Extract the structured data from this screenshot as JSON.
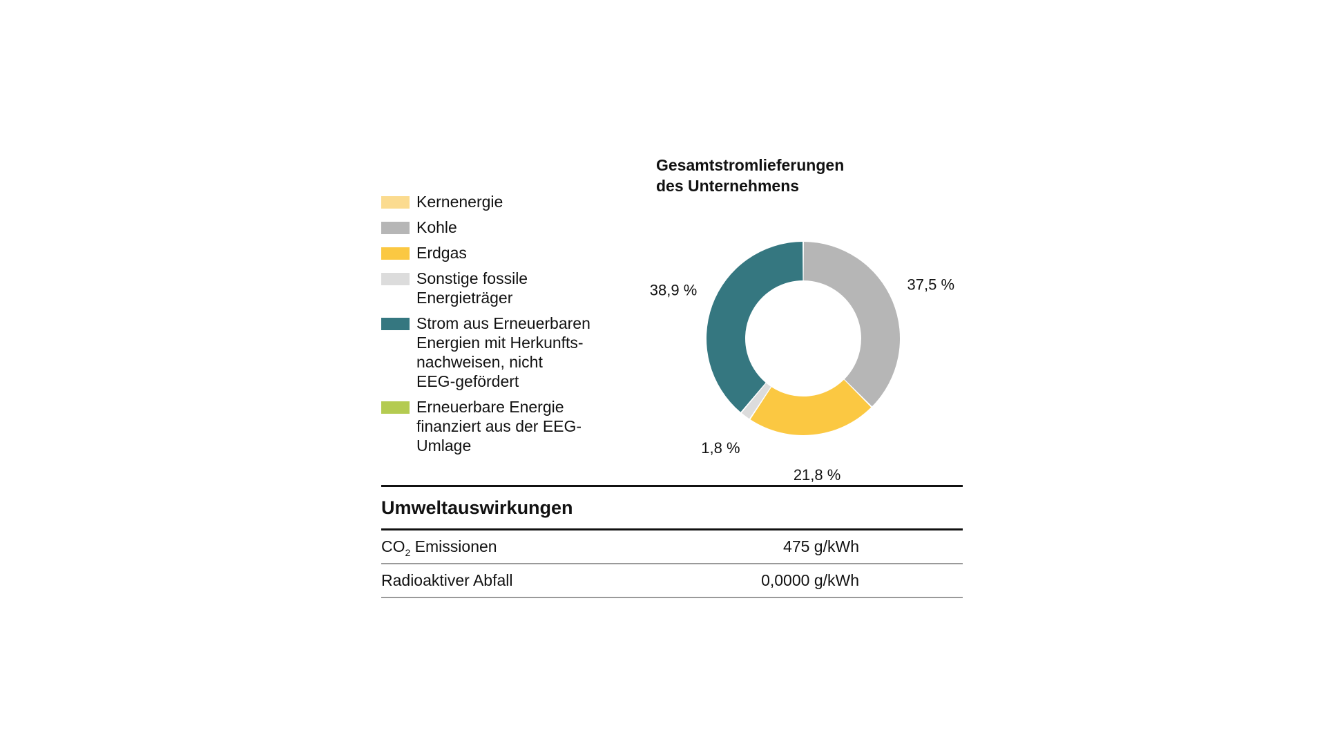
{
  "chart_data": {
    "type": "pie",
    "style": "donut",
    "title": "Gesamtstromlieferungen\ndes Unternehmens",
    "legend": {
      "placement": "left",
      "entries": [
        {
          "label": "Kernenergie",
          "color": "#fbdb8f"
        },
        {
          "label": "Kohle",
          "color": "#b6b6b6"
        },
        {
          "label": "Erdgas",
          "color": "#fbc842"
        },
        {
          "label": "Sonstige fossile\nEnergieträger",
          "color": "#dcdcdc"
        },
        {
          "label": "Strom aus Erneuerbaren\nEnergien mit Herkunfts-\nnachweisen, nicht\nEEG-gefördert",
          "color": "#357780"
        },
        {
          "label": "Erneuerbare Energie\nfinanziert aus der EEG-\nUmlage",
          "color": "#b4cb51"
        }
      ]
    },
    "slices": [
      {
        "label": "Kohle",
        "value": 37.5,
        "value_label": "37,5 %",
        "color": "#b6b6b6"
      },
      {
        "label": "Erdgas",
        "value": 21.8,
        "value_label": "21,8 %",
        "color": "#fbc842"
      },
      {
        "label": "Sonstige fossile Energieträger",
        "value": 1.8,
        "value_label": "1,8 %",
        "color": "#dcdcdc"
      },
      {
        "label": "Strom aus Erneuerbaren Energien mit Herkunftsnachweisen, nicht EEG-gefördert",
        "value": 38.9,
        "value_label": "38,9 %",
        "color": "#357780"
      }
    ]
  },
  "impacts": {
    "heading": "Umweltauswirkungen",
    "rows": [
      {
        "label_main": "CO",
        "label_sub": "2",
        "label_rest": " Emissionen",
        "value": "475 g/kWh"
      },
      {
        "label_main": "Radioaktiver Abfall",
        "label_sub": "",
        "label_rest": "",
        "value": "0,0000 g/kWh"
      }
    ]
  }
}
